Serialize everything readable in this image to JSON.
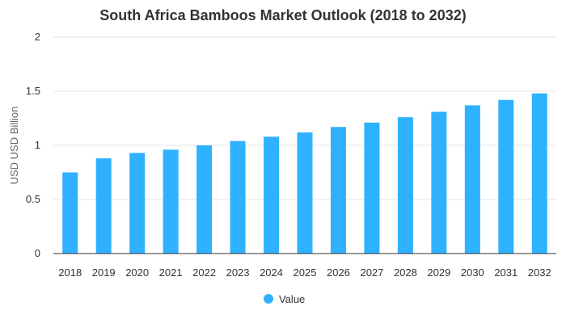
{
  "chart_data": {
    "type": "bar",
    "title": "South Africa Bamboos Market Outlook (2018 to 2032)",
    "xlabel": "",
    "ylabel": "USD USD Billion",
    "ylim": [
      0,
      2
    ],
    "yticks": [
      "0",
      "0.5",
      "1",
      "1.5",
      "2"
    ],
    "categories": [
      "2018",
      "2019",
      "2020",
      "2021",
      "2022",
      "2023",
      "2024",
      "2025",
      "2026",
      "2027",
      "2028",
      "2029",
      "2030",
      "2031",
      "2032"
    ],
    "series": [
      {
        "name": "Value",
        "color": "#2EB2FF",
        "values": [
          0.75,
          0.88,
          0.93,
          0.96,
          1.0,
          1.04,
          1.08,
          1.12,
          1.17,
          1.21,
          1.26,
          1.31,
          1.37,
          1.42,
          1.48
        ]
      }
    ],
    "grid": true,
    "legend_position": "bottom"
  }
}
